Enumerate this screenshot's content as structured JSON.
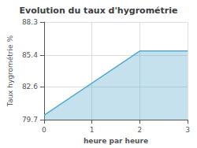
{
  "chart_data": {
    "type": "area",
    "title": "Evolution du taux d'hygrométrie",
    "xlabel": "heure par heure",
    "ylabel": "Taux hygrométrie %",
    "x": [
      0,
      2,
      3
    ],
    "values": [
      80.1,
      85.75,
      85.75
    ],
    "xlim": [
      0,
      3
    ],
    "ylim": [
      79.7,
      88.3
    ],
    "xticks": [
      0,
      1,
      2,
      3
    ],
    "yticks": [
      79.7,
      82.6,
      85.4,
      88.3
    ],
    "color": "#55aacc",
    "grid": true
  }
}
